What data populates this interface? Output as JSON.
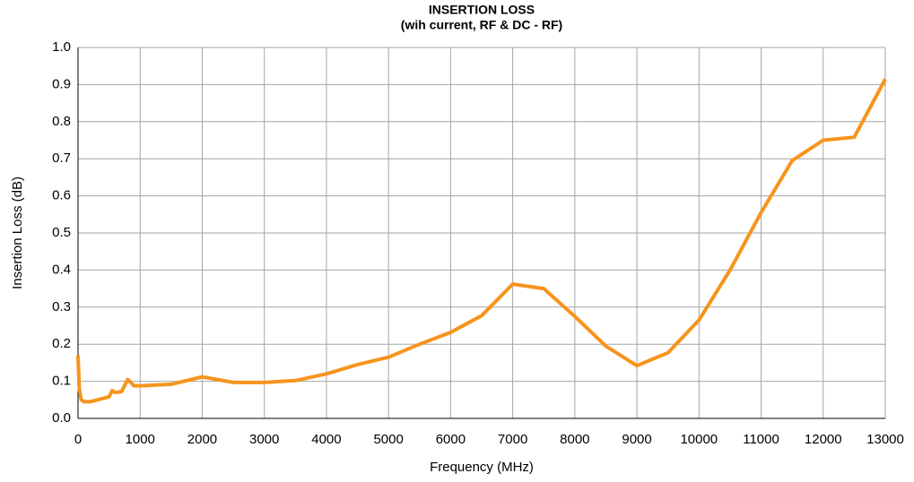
{
  "chart_data": {
    "type": "line",
    "title": "INSERTION LOSS",
    "subtitle": "(wih current, RF & DC - RF)",
    "x_label": "Frequency (MHz)",
    "y_label": "Insertion Loss (dB)",
    "x": [
      0,
      20,
      50,
      100,
      200,
      500,
      550,
      600,
      700,
      800,
      900,
      1000,
      1500,
      2000,
      2500,
      3000,
      3500,
      4000,
      4500,
      5000,
      5500,
      6000,
      6500,
      7000,
      7500,
      8000,
      8500,
      9000,
      9500,
      10000,
      10500,
      11000,
      11500,
      12000,
      12500,
      13000
    ],
    "series": [
      {
        "name": "Insertion Loss",
        "color": "#f7941d",
        "values": [
          0.17,
          0.08,
          0.05,
          0.045,
          0.045,
          0.058,
          0.075,
          0.07,
          0.072,
          0.105,
          0.088,
          0.088,
          0.092,
          0.112,
          0.097,
          0.097,
          0.102,
          0.12,
          0.145,
          0.165,
          0.2,
          0.232,
          0.277,
          0.362,
          0.35,
          0.275,
          0.195,
          0.142,
          0.177,
          0.265,
          0.4,
          0.555,
          0.695,
          0.75,
          0.758,
          0.915
        ]
      }
    ],
    "xlim": [
      0,
      13000
    ],
    "xticks": [
      0,
      1000,
      2000,
      3000,
      4000,
      5000,
      6000,
      7000,
      8000,
      9000,
      10000,
      11000,
      12000,
      13000
    ],
    "ylim": [
      0,
      1
    ],
    "yticks": [
      {
        "value": 0,
        "label": "0.0"
      },
      0.1,
      0.2,
      0.3,
      0.4,
      0.5,
      0.6,
      0.7,
      0.8,
      0.9,
      {
        "value": 1,
        "label": "1.0"
      }
    ],
    "grid": true
  }
}
